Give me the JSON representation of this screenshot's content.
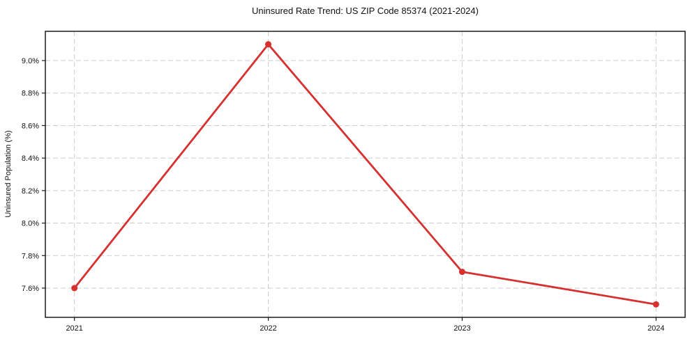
{
  "chart_data": {
    "type": "line",
    "title": "Uninsured Rate Trend: US ZIP Code 85374 (2021-2024)",
    "xlabel": "",
    "ylabel": "Uninsured Population (%)",
    "x": [
      2021,
      2022,
      2023,
      2024
    ],
    "x_labels": [
      "2021",
      "2022",
      "2023",
      "2024"
    ],
    "series": [
      {
        "name": "Uninsured rate",
        "values": [
          7.6,
          9.1,
          7.7,
          7.5
        ]
      }
    ],
    "yticks": [
      7.6,
      7.8,
      8.0,
      8.2,
      8.4,
      8.6,
      8.8,
      9.0
    ],
    "ytick_labels": [
      "7.6%",
      "7.8%",
      "8.0%",
      "8.2%",
      "8.4%",
      "8.6%",
      "8.8%",
      "9.0%"
    ],
    "xlim": [
      2020.85,
      2024.15
    ],
    "ylim": [
      7.42,
      9.18
    ],
    "grid": true,
    "grid_style": "dashed",
    "legend": "none",
    "marker": "circle",
    "colors": {
      "line": "#d6302f",
      "grid": "#cdcdcd",
      "axis": "#1a1a1a",
      "text": "#111111",
      "background": "#ffffff"
    }
  }
}
